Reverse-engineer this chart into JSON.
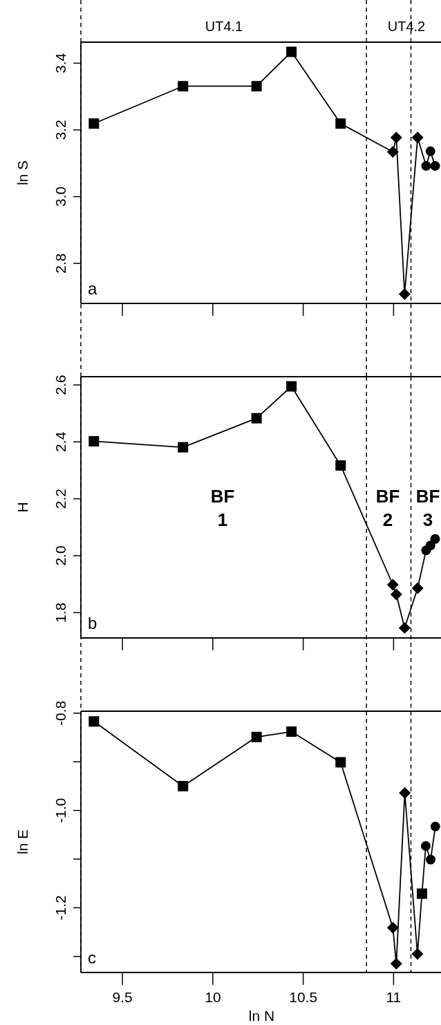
{
  "chart_data": [
    {
      "type": "line",
      "ylabel": "ln S",
      "xlim": [
        9.27,
        11.27
      ],
      "xticks": [
        9.5,
        10,
        10.5,
        11
      ],
      "ylim": [
        2.68,
        3.463
      ],
      "yticks": [
        2.8,
        {
          "value": 3,
          "label": "3.0"
        },
        3.2,
        3.4
      ],
      "tick_labels": "y",
      "annotations": [
        "a",
        "UT4.1",
        "UT4.2"
      ],
      "ref_lines": [
        {
          "axis": "x",
          "value": 9.27,
          "line_style": "dashed"
        },
        {
          "axis": "x",
          "value": 10.85,
          "line_style": "dashed"
        },
        {
          "axis": "x",
          "value": 11.096,
          "line_style": "dashed"
        }
      ],
      "series": [
        {
          "color": "#000000",
          "marker": "none",
          "x": [
            9.342,
            9.835,
            10.242,
            10.435,
            10.707,
            10.996,
            11.015,
            11.061,
            11.133,
            11.18,
            11.204,
            11.23
          ],
          "values": [
            3.219,
            3.331,
            3.331,
            3.434,
            3.219,
            3.134,
            3.177,
            2.708,
            3.177,
            3.092,
            3.136,
            3.092
          ]
        },
        {
          "type": "scatter",
          "color": "#000000",
          "marker": "square",
          "x": [
            9.342,
            9.835,
            10.242,
            10.435,
            10.707
          ],
          "values": [
            3.219,
            3.331,
            3.331,
            3.434,
            3.219
          ]
        },
        {
          "type": "scatter",
          "color": "#000000",
          "marker": "diamond",
          "x": [
            10.996,
            11.015,
            11.061,
            11.133
          ],
          "values": [
            3.134,
            3.177,
            2.708,
            3.177
          ]
        },
        {
          "type": "scatter",
          "color": "#000000",
          "marker": "circle",
          "x": [
            11.18,
            11.204,
            11.23
          ],
          "values": [
            3.092,
            3.136,
            3.092
          ]
        }
      ]
    },
    {
      "type": "line",
      "ylabel": "H",
      "xlim": [
        9.27,
        11.27
      ],
      "xticks": [
        9.5,
        10,
        10.5,
        11
      ],
      "ylim": [
        1.711,
        2.629
      ],
      "yticks": [
        1.8,
        {
          "value": 2,
          "label": "2.0"
        },
        2.2,
        2.4,
        2.6
      ],
      "tick_labels": "y",
      "annotations": [
        "b",
        "BF\n1",
        "BF\n2",
        "BF\n3"
      ],
      "ref_lines": [
        {
          "axis": "x",
          "value": 9.27,
          "line_style": "dashed"
        },
        {
          "axis": "x",
          "value": 10.85,
          "line_style": "dashed"
        },
        {
          "axis": "x",
          "value": 11.096,
          "line_style": "dashed"
        }
      ],
      "series": [
        {
          "color": "#000000",
          "marker": "none",
          "x": [
            9.342,
            9.835,
            10.242,
            10.435,
            10.707,
            10.996,
            11.015,
            11.061,
            11.133,
            11.18,
            11.204,
            11.23
          ],
          "values": [
            2.402,
            2.381,
            2.483,
            2.595,
            2.317,
            1.898,
            1.864,
            1.746,
            1.886,
            2.019,
            2.036,
            2.059
          ]
        },
        {
          "type": "scatter",
          "color": "#000000",
          "marker": "square",
          "x": [
            9.342,
            9.835,
            10.242,
            10.435,
            10.707
          ],
          "values": [
            2.402,
            2.381,
            2.483,
            2.595,
            2.317
          ]
        },
        {
          "type": "scatter",
          "color": "#000000",
          "marker": "diamond",
          "x": [
            10.996,
            11.015,
            11.061,
            11.133
          ],
          "values": [
            1.898,
            1.864,
            1.746,
            1.886
          ]
        },
        {
          "type": "scatter",
          "color": "#000000",
          "marker": "circle",
          "x": [
            11.18,
            11.204,
            11.23
          ],
          "values": [
            2.019,
            2.036,
            2.059
          ]
        }
      ]
    },
    {
      "type": "line",
      "xlabel": "ln N",
      "ylabel": "ln E",
      "xlim": [
        9.27,
        11.27
      ],
      "xticks": [
        9.5,
        10,
        10.5,
        11
      ],
      "ylim": [
        -1.333,
        -0.796
      ],
      "yticks": [
        -0.8,
        {
          "value": -0.9,
          "label": null
        },
        {
          "value": -1,
          "label": "-1.0"
        },
        {
          "value": -1.1,
          "label": null
        },
        -1.2,
        {
          "value": -1.3,
          "label": null
        }
      ],
      "annotations": [
        "c"
      ],
      "ref_lines": [
        {
          "axis": "x",
          "value": 9.27,
          "line_style": "dashed"
        },
        {
          "axis": "x",
          "value": 10.85,
          "line_style": "dashed"
        },
        {
          "axis": "x",
          "value": 11.096,
          "line_style": "dashed"
        }
      ],
      "series": [
        {
          "color": "#000000",
          "marker": "none",
          "x": [
            9.342,
            9.835,
            10.242,
            10.435,
            10.707,
            10.996,
            11.015,
            11.062,
            11.132,
            11.157,
            11.178,
            11.205,
            11.231
          ],
          "values": [
            -0.817,
            -0.95,
            -0.849,
            -0.838,
            -0.901,
            -1.241,
            -1.315,
            -0.964,
            -1.295,
            -1.171,
            -1.073,
            -1.101,
            -1.033
          ]
        },
        {
          "type": "scatter",
          "color": "#000000",
          "marker": "square",
          "x": [
            9.342,
            9.835,
            10.242,
            10.435,
            10.707,
            11.157
          ],
          "values": [
            -0.817,
            -0.95,
            -0.849,
            -0.838,
            -0.901,
            -1.171
          ]
        },
        {
          "type": "scatter",
          "color": "#000000",
          "marker": "diamond",
          "x": [
            10.996,
            11.015,
            11.062,
            11.132
          ],
          "values": [
            -1.241,
            -1.315,
            -0.964,
            -1.295
          ]
        },
        {
          "type": "scatter",
          "color": "#000000",
          "marker": "circle",
          "x": [
            11.178,
            11.205,
            11.231
          ],
          "values": [
            -1.073,
            -1.101,
            -1.033
          ]
        }
      ]
    }
  ]
}
